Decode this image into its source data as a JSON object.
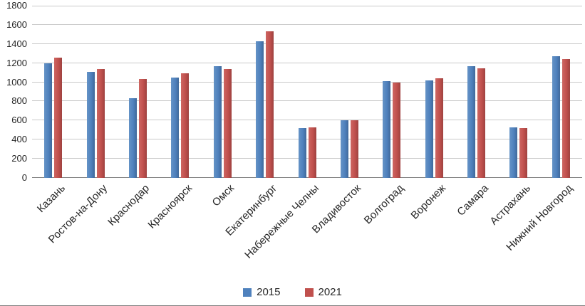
{
  "chart_data": {
    "type": "bar",
    "title": "",
    "xlabel": "",
    "ylabel": "",
    "ylim": [
      0,
      1800
    ],
    "yticks": [
      0,
      200,
      400,
      600,
      800,
      1000,
      1200,
      1400,
      1600,
      1800
    ],
    "grid": true,
    "legend_position": "bottom",
    "categories": [
      "Казань",
      "Ростов-на-Дону",
      "Краснодар",
      "Красноярск",
      "Омск",
      "Екатеринбург",
      "Набережные Челны",
      "Владивосток",
      "Волгоград",
      "Воронеж",
      "Самара",
      "Астрахань",
      "Нижний Новгород"
    ],
    "series": [
      {
        "name": "2015",
        "color": "#4F81BD",
        "values": [
          1200,
          1110,
          830,
          1050,
          1170,
          1430,
          520,
          600,
          1010,
          1020,
          1170,
          530,
          1270
        ]
      },
      {
        "name": "2021",
        "color": "#C0504D",
        "values": [
          1255,
          1135,
          1035,
          1090,
          1135,
          1530,
          530,
          600,
          1000,
          1045,
          1145,
          520,
          1240
        ]
      }
    ]
  }
}
